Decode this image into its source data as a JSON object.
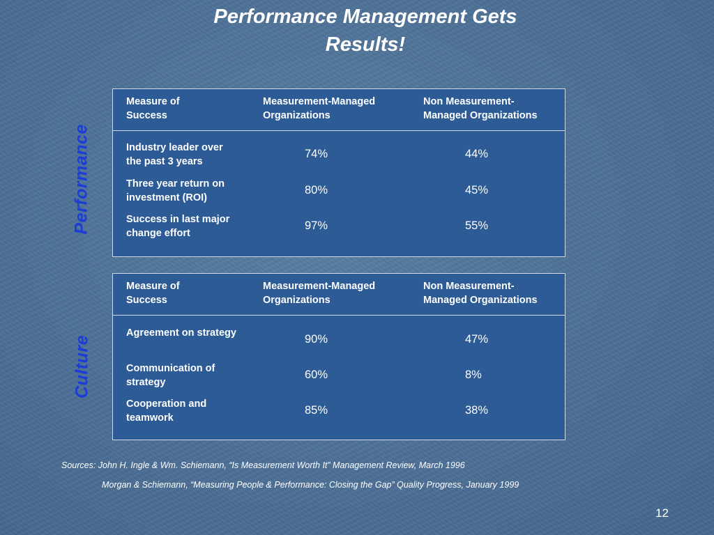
{
  "slide": {
    "title_line1": "Performance Management Gets",
    "title_line2": "Results!",
    "page_number": "12"
  },
  "performance": {
    "side_label": "Performance",
    "headers": [
      "Measure of Success",
      "Measurement-Managed Organizations",
      "Non Measurement-Managed Organizations"
    ],
    "header_lines": {
      "c1a": "Measure of",
      "c1b": "Success",
      "c2a": "Measurement-Managed",
      "c2b": "Organizations",
      "c3a": "Non Measurement-",
      "c3b": "Managed Organizations"
    },
    "rows": [
      {
        "l1": "Industry leader over",
        "l2": "the past 3 years",
        "managed": "74%",
        "non_managed": "44%"
      },
      {
        "l1": "Three year return on",
        "l2": "investment (ROI)",
        "managed": "80%",
        "non_managed": "45%"
      },
      {
        "l1": "Success in last major",
        "l2": "change effort",
        "managed": "97%",
        "non_managed": "55%"
      }
    ]
  },
  "culture": {
    "side_label": "Culture",
    "header_lines": {
      "c1a": "Measure of",
      "c1b": "Success",
      "c2a": "Measurement-Managed",
      "c2b": "Organizations",
      "c3a": "Non Measurement-",
      "c3b": "Managed Organizations"
    },
    "rows": [
      {
        "l1": "Agreement on strategy",
        "l2": "",
        "managed": "90%",
        "non_managed": "47%"
      },
      {
        "l1": "Communication of",
        "l2": "strategy",
        "managed": "60%",
        "non_managed": "8%"
      },
      {
        "l1": "Cooperation and",
        "l2": "teamwork",
        "managed": "85%",
        "non_managed": "38%"
      }
    ]
  },
  "sources": {
    "line1": "Sources: John H. Ingle & Wm. Schiemann, “Is Measurement Worth It” Management Review, March 1996",
    "line2": "Morgan & Schiemann, “Measuring People & Performance: Closing the Gap” Quality Progress, January 1999"
  },
  "colors": {
    "side_label": "#1b3cd6",
    "panel_fill": "#2c5b95",
    "background": "#5a7fa6"
  }
}
